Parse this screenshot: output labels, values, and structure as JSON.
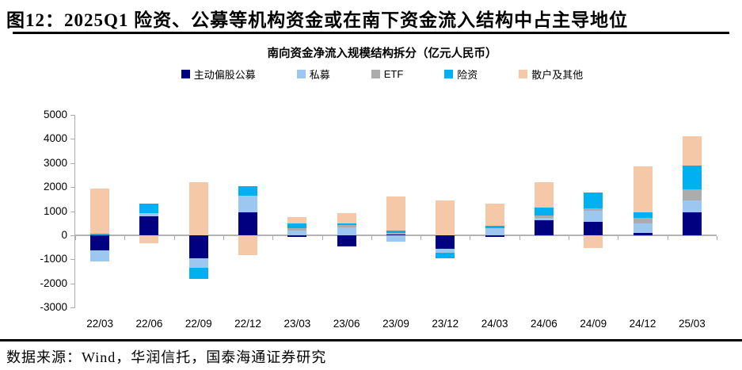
{
  "figure": {
    "title": "图12：2025Q1 险资、公募等机构资金或在南下资金流入结构中占主导地位",
    "source": "数据来源：Wind，华润信托，国泰海通证券研究"
  },
  "chart_data": {
    "type": "bar",
    "stacked": true,
    "title": "南向资金净流入规模结构拆分（亿元人民币）",
    "categories": [
      "22/03",
      "22/06",
      "22/09",
      "22/12",
      "23/03",
      "23/06",
      "23/09",
      "23/12",
      "24/03",
      "24/06",
      "24/09",
      "24/12",
      "25/03"
    ],
    "series": [
      {
        "name": "主动偏股公募",
        "color": "#000080",
        "values": [
          -630,
          780,
          -950,
          950,
          -70,
          -460,
          30,
          -580,
          -60,
          620,
          540,
          90,
          950
        ]
      },
      {
        "name": "私募",
        "color": "#9cc7f0",
        "values": [
          -460,
          150,
          -400,
          700,
          190,
          340,
          -280,
          -160,
          280,
          110,
          470,
          410,
          510
        ]
      },
      {
        "name": "ETF",
        "color": "#acacac",
        "values": [
          0,
          0,
          0,
          0,
          90,
          80,
          60,
          0,
          0,
          90,
          90,
          220,
          430
        ]
      },
      {
        "name": "险资",
        "color": "#00b0f0",
        "values": [
          70,
          370,
          -450,
          400,
          210,
          80,
          110,
          -210,
          120,
          330,
          660,
          220,
          1010
        ]
      },
      {
        "name": "散户及其他",
        "color": "#f5c9a7",
        "values": [
          1880,
          -330,
          2200,
          -830,
          250,
          430,
          1400,
          1440,
          920,
          1050,
          -530,
          1910,
          1200
        ]
      }
    ],
    "ylabel": "",
    "xlabel": "",
    "ylim": [
      -3000,
      5000
    ],
    "ytick_step": 1000,
    "yticks": [
      5000,
      4000,
      3000,
      2000,
      1000,
      0,
      -1000,
      -2000,
      -3000
    ],
    "legend_position": "top",
    "grid": false,
    "axis_color": "#ababab"
  }
}
